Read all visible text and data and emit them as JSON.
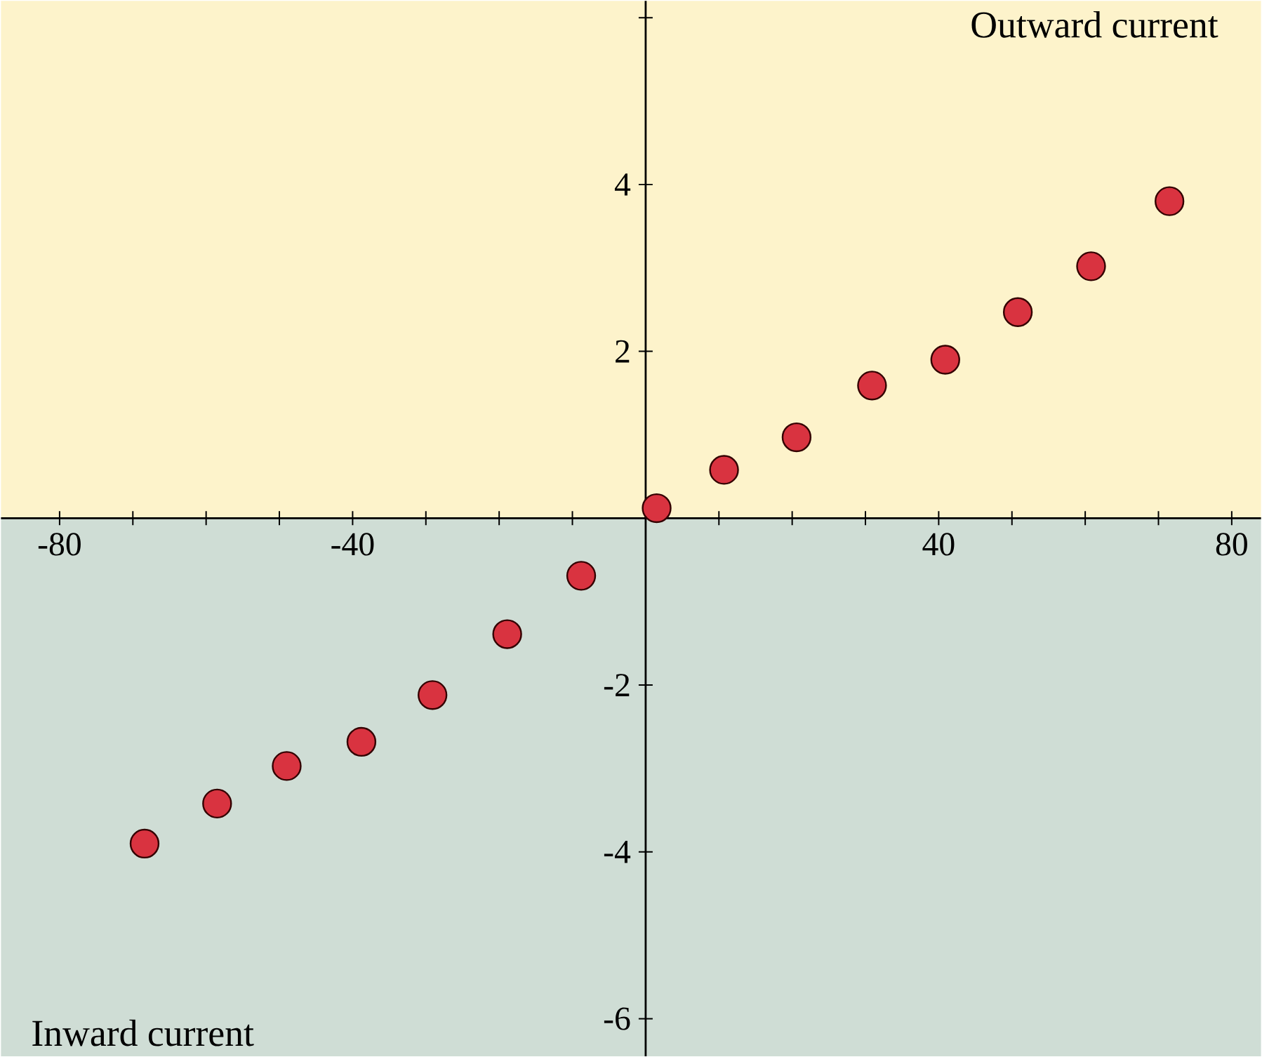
{
  "chart_data": {
    "type": "scatter",
    "marker": "circle",
    "grid": false,
    "legend": false,
    "x": [
      -68.4,
      -58.5,
      -49,
      -38.8,
      -29.1,
      -18.9,
      -8.8,
      1.5,
      10.7,
      20.6,
      30.9,
      40.9,
      50.8,
      60.8,
      71.5
    ],
    "values": [
      -3.9,
      -3.42,
      -2.97,
      -2.68,
      -2.12,
      -1.39,
      -0.69,
      0.12,
      0.58,
      0.97,
      1.59,
      1.9,
      2.47,
      3.02,
      3.8
    ],
    "color": "#d93340",
    "xlim": [
      -88,
      84
    ],
    "ylim": [
      -6.45,
      6.2
    ],
    "xticks": [
      -80,
      {
        "value": -70,
        "label": null
      },
      {
        "value": -60,
        "label": null
      },
      {
        "value": -50,
        "label": null
      },
      -40,
      {
        "value": -30,
        "label": null
      },
      {
        "value": -20,
        "label": null
      },
      {
        "value": -10,
        "label": null
      },
      {
        "value": 10,
        "label": null
      },
      {
        "value": 20,
        "label": null
      },
      {
        "value": 30,
        "label": null
      },
      40,
      {
        "value": 50,
        "label": null
      },
      {
        "value": 60,
        "label": null
      },
      {
        "value": 70,
        "label": null
      },
      80
    ],
    "yticks": [
      -6,
      -4,
      -2,
      2,
      4,
      {
        "value": 6,
        "label": null
      }
    ],
    "bands": [
      {
        "axis": "y",
        "from": 0,
        "to": 6.2,
        "color": "#fdf3cb"
      },
      {
        "axis": "y",
        "from": -6.45,
        "to": 0,
        "color": "#cfddd5"
      }
    ],
    "annotations": [
      "Outward current",
      "Inward current"
    ]
  }
}
